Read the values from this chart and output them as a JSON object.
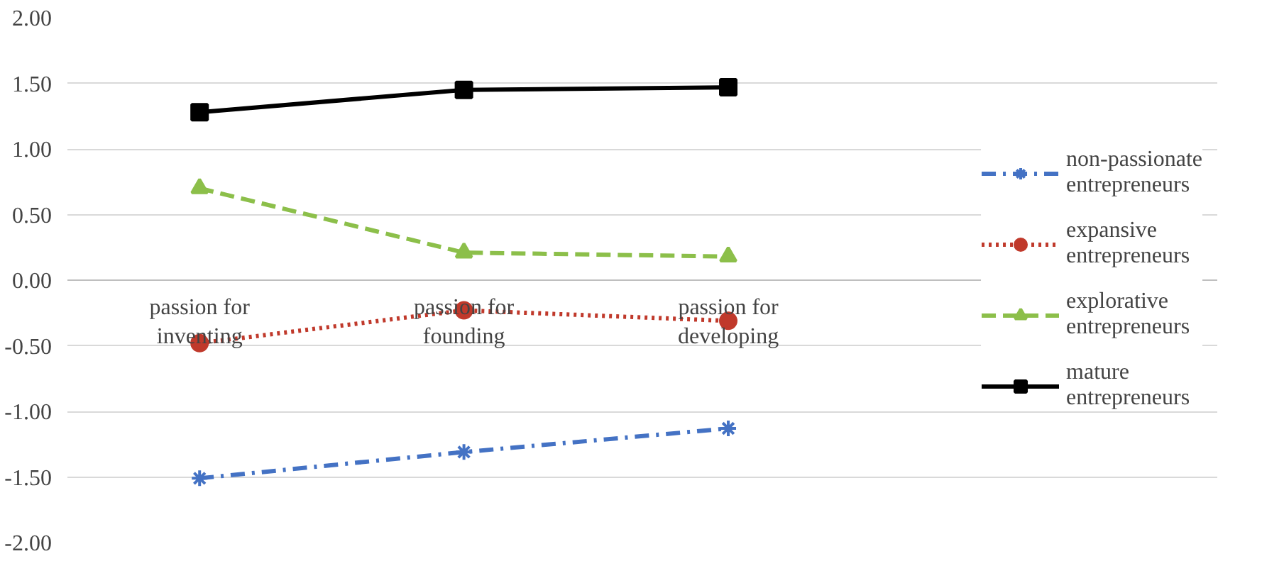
{
  "chart_data": {
    "type": "line",
    "categories": [
      "passion for inventing",
      "passion for founding",
      "passion for developing"
    ],
    "series": [
      {
        "name": "non-passionate entrepreneurs",
        "color": "#4472c4",
        "values": [
          -1.51,
          -1.31,
          -1.13
        ],
        "marker": "cross",
        "line_style": "dashdot"
      },
      {
        "name": "expansive entrepreneurs",
        "color": "#c0392b",
        "values": [
          -0.48,
          -0.23,
          -0.31
        ],
        "marker": "circle",
        "line_style": "dotted"
      },
      {
        "name": "explorative entrepreneurs",
        "color": "#8cbf4a",
        "values": [
          0.7,
          0.21,
          0.18
        ],
        "marker": "triangle",
        "line_style": "dashed"
      },
      {
        "name": "mature entrepreneurs",
        "color": "#000000",
        "values": [
          1.28,
          1.45,
          1.47
        ],
        "marker": "square",
        "line_style": "solid"
      }
    ],
    "ylim": [
      -2,
      2
    ],
    "yticks": [
      {
        "value": -2,
        "label": "-2.00"
      },
      {
        "value": -1.5,
        "label": "-1.50"
      },
      {
        "value": -1,
        "label": "-1.00"
      },
      {
        "value": -0.5,
        "label": "-0.50"
      },
      {
        "value": 0,
        "label": "0.00"
      },
      {
        "value": 0.5,
        "label": "0.50"
      },
      {
        "value": 1,
        "label": "1.00"
      },
      {
        "value": 1.5,
        "label": "1.50"
      },
      {
        "value": 2,
        "label": "2.00"
      }
    ],
    "grid": "y",
    "legend": "right"
  }
}
